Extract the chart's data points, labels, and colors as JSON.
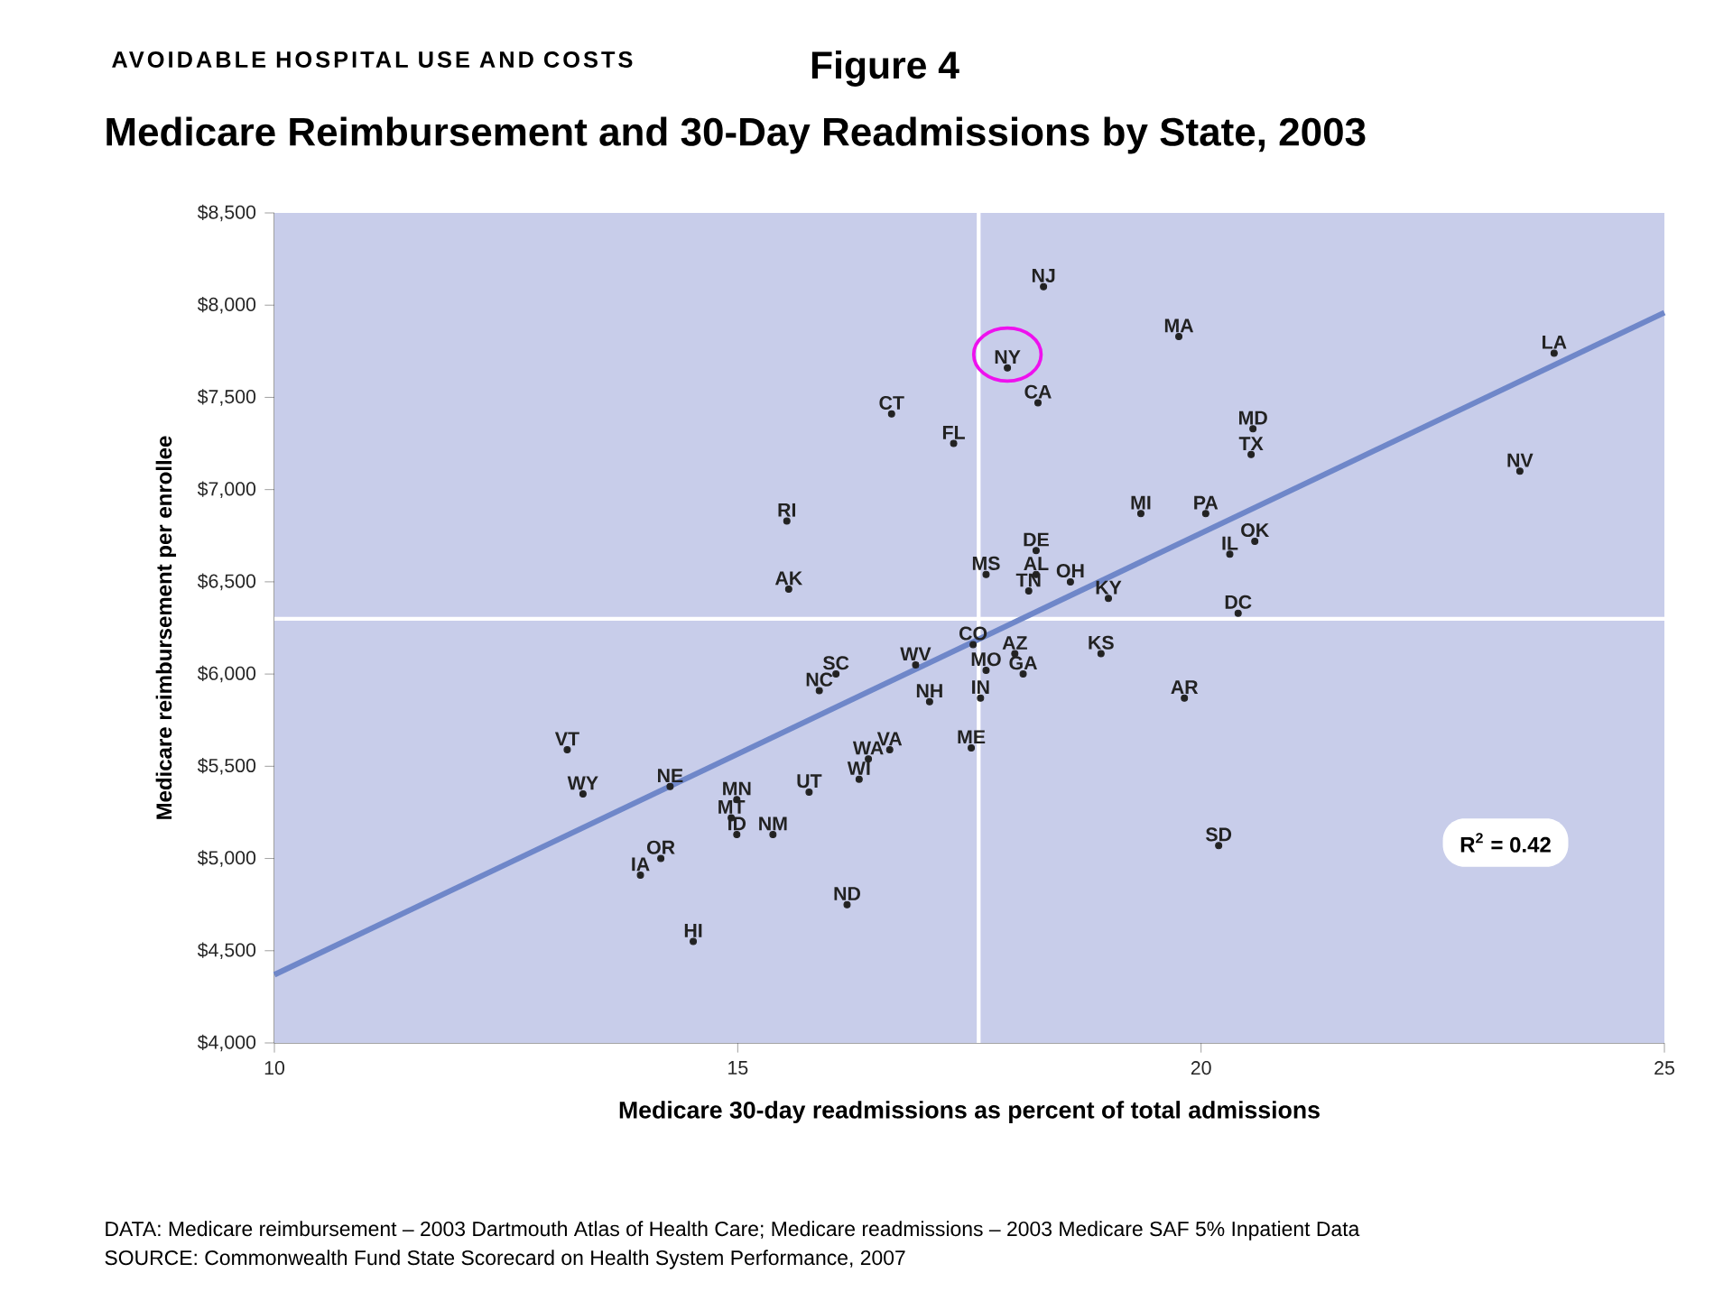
{
  "chart_data": {
    "type": "scatter",
    "title": "Medicare Reimbursement and 30-Day Readmissions by State, 2003",
    "xlabel": "Medicare 30-day readmissions as percent of total admissions",
    "ylabel": "Medicare reimbursement per enrollee",
    "annotations": [
      "AVOIDABLE HOSPITAL USE AND COSTS",
      "Figure 4",
      "R$^{2}$ = 0.42",
      "DATA: Medicare reimbursement – 2003 Dartmouth Atlas of Health Care; Medicare readmissions – 2003 Medicare SAF 5% Inpatient Data",
      "SOURCE: Commonwealth Fund State Scorecard on Health System Performance, 2007"
    ],
    "xlim": [
      10,
      25
    ],
    "ylim": [
      4000,
      8500
    ],
    "xticks": [
      10,
      15,
      20,
      25
    ],
    "yticks": [
      {
        "value": 4000,
        "label": "$4,000"
      },
      {
        "value": 4500,
        "label": "$4,500"
      },
      {
        "value": 5000,
        "label": "$5,000"
      },
      {
        "value": 5500,
        "label": "$5,500"
      },
      {
        "value": 6000,
        "label": "$6,000"
      },
      {
        "value": 6500,
        "label": "$6,500"
      },
      {
        "value": 7000,
        "label": "$7,000"
      },
      {
        "value": 7500,
        "label": "$7,500"
      },
      {
        "value": 8000,
        "label": "$8,000"
      },
      {
        "value": 8500,
        "label": "$8,500"
      }
    ],
    "series": [
      {
        "color": "#222222",
        "marker": "circle",
        "x": [
          18.3,
          19.76,
          17.91,
          18.24,
          16.66,
          17.33,
          20.56,
          20.54,
          23.81,
          23.44,
          19.35,
          20.05,
          15.53,
          18.22,
          20.31,
          20.58,
          17.68,
          18.22,
          18.59,
          18.14,
          19.0,
          15.55,
          20.4,
          17.54,
          17.99,
          17.68,
          18.08,
          18.92,
          16.92,
          16.06,
          15.88,
          17.07,
          17.62,
          19.82,
          17.52,
          16.64,
          16.41,
          16.31,
          13.16,
          13.33,
          14.27,
          14.99,
          15.77,
          14.93,
          14.99,
          15.38,
          14.17,
          13.95,
          20.19,
          16.18,
          14.52
        ],
        "values": [
          8100,
          7830,
          7660,
          7470,
          7410,
          7250,
          7330,
          7190,
          7740,
          7100,
          6870,
          6870,
          6830,
          6670,
          6650,
          6720,
          6540,
          6540,
          6500,
          6450,
          6410,
          6460,
          6330,
          6160,
          6110,
          6020,
          6000,
          6110,
          6050,
          6000,
          5910,
          5850,
          5870,
          5870,
          5600,
          5590,
          5540,
          5430,
          5590,
          5350,
          5390,
          5320,
          5360,
          5220,
          5130,
          5130,
          5000,
          4910,
          5070,
          4750,
          4550
        ],
        "value_labels": [
          "NJ",
          "MA",
          "NY",
          "CA",
          "CT",
          "FL",
          "MD",
          "TX",
          "LA",
          "NV",
          "MI",
          "PA",
          "RI",
          "DE",
          "IL",
          "OK",
          "MS",
          "AL",
          "OH",
          "TN",
          "KY",
          "AK",
          "DC",
          "CO",
          "AZ",
          "MO",
          "GA",
          "KS",
          "WV",
          "SC",
          "NC",
          "NH",
          "IN",
          "AR",
          "ME",
          "VA",
          "WA",
          "WI",
          "VT",
          "WY",
          "NE",
          "MN",
          "UT",
          "MT",
          "ID",
          "NM",
          "OR",
          "IA",
          "SD",
          "ND",
          "HI"
        ]
      },
      {
        "type": "line",
        "color": "#6f87c9",
        "x": [
          10,
          25
        ],
        "values": [
          4370,
          7960
        ]
      }
    ],
    "ref_lines": [
      {
        "axis": "x",
        "value": 17.6,
        "color": "#ffffff"
      },
      {
        "axis": "y",
        "value": 6300,
        "color": "#ffffff"
      }
    ]
  }
}
